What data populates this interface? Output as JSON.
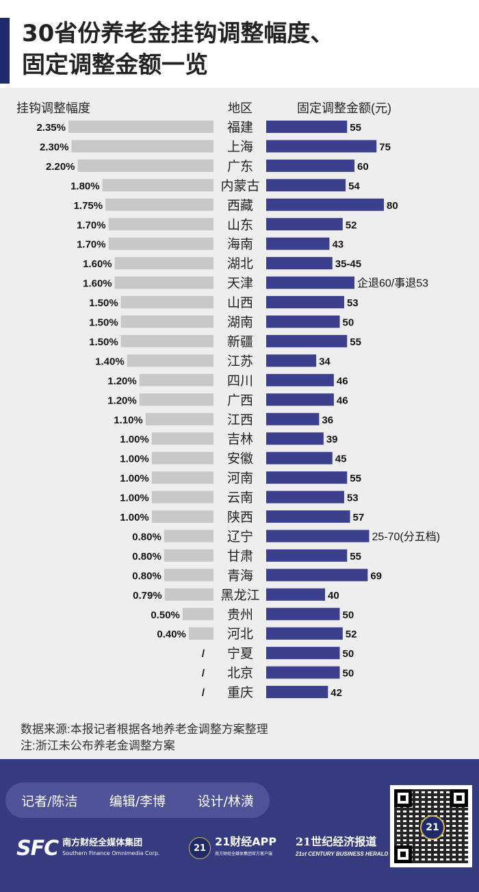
{
  "title": {
    "line1": "30省份养老金挂钩调整幅度、",
    "line2": "固定调整金额一览"
  },
  "colors": {
    "bar_left": "#c8c8c8",
    "bar_right": "#3c3f8e",
    "footer": "#353b7e"
  },
  "chart_data": {
    "type": "bar",
    "left_header": "挂钩调整幅度",
    "center_header": "地区",
    "right_header": "固定调整金额(元)",
    "rows": [
      {
        "region": "福建",
        "pct": 2.35,
        "pct_label": "2.35%",
        "amount": 55,
        "amount_label": "55"
      },
      {
        "region": "上海",
        "pct": 2.3,
        "pct_label": "2.30%",
        "amount": 75,
        "amount_label": "75"
      },
      {
        "region": "广东",
        "pct": 2.2,
        "pct_label": "2.20%",
        "amount": 60,
        "amount_label": "60"
      },
      {
        "region": "内蒙古",
        "pct": 1.8,
        "pct_label": "1.80%",
        "amount": 54,
        "amount_label": "54"
      },
      {
        "region": "西藏",
        "pct": 1.75,
        "pct_label": "1.75%",
        "amount": 80,
        "amount_label": "80"
      },
      {
        "region": "山东",
        "pct": 1.7,
        "pct_label": "1.70%",
        "amount": 52,
        "amount_label": "52"
      },
      {
        "region": "海南",
        "pct": 1.7,
        "pct_label": "1.70%",
        "amount": 43,
        "amount_label": "43"
      },
      {
        "region": "湖北",
        "pct": 1.6,
        "pct_label": "1.60%",
        "amount": 45,
        "amount_label": "35-45"
      },
      {
        "region": "天津",
        "pct": 1.6,
        "pct_label": "1.60%",
        "amount": 60,
        "amount_label": "企退60/事退53"
      },
      {
        "region": "山西",
        "pct": 1.5,
        "pct_label": "1.50%",
        "amount": 53,
        "amount_label": "53"
      },
      {
        "region": "湖南",
        "pct": 1.5,
        "pct_label": "1.50%",
        "amount": 50,
        "amount_label": "50"
      },
      {
        "region": "新疆",
        "pct": 1.5,
        "pct_label": "1.50%",
        "amount": 55,
        "amount_label": "55"
      },
      {
        "region": "江苏",
        "pct": 1.4,
        "pct_label": "1.40%",
        "amount": 34,
        "amount_label": "34"
      },
      {
        "region": "四川",
        "pct": 1.2,
        "pct_label": "1.20%",
        "amount": 46,
        "amount_label": "46"
      },
      {
        "region": "广西",
        "pct": 1.2,
        "pct_label": "1.20%",
        "amount": 46,
        "amount_label": "46"
      },
      {
        "region": "江西",
        "pct": 1.1,
        "pct_label": "1.10%",
        "amount": 36,
        "amount_label": "36"
      },
      {
        "region": "吉林",
        "pct": 1.0,
        "pct_label": "1.00%",
        "amount": 39,
        "amount_label": "39"
      },
      {
        "region": "安徽",
        "pct": 1.0,
        "pct_label": "1.00%",
        "amount": 45,
        "amount_label": "45"
      },
      {
        "region": "河南",
        "pct": 1.0,
        "pct_label": "1.00%",
        "amount": 55,
        "amount_label": "55"
      },
      {
        "region": "云南",
        "pct": 1.0,
        "pct_label": "1.00%",
        "amount": 53,
        "amount_label": "53"
      },
      {
        "region": "陕西",
        "pct": 1.0,
        "pct_label": "1.00%",
        "amount": 57,
        "amount_label": "57"
      },
      {
        "region": "辽宁",
        "pct": 0.8,
        "pct_label": "0.80%",
        "amount": 70,
        "amount_label": "25-70(分五档)"
      },
      {
        "region": "甘肃",
        "pct": 0.8,
        "pct_label": "0.80%",
        "amount": 55,
        "amount_label": "55"
      },
      {
        "region": "青海",
        "pct": 0.8,
        "pct_label": "0.80%",
        "amount": 69,
        "amount_label": "69"
      },
      {
        "region": "黑龙江",
        "pct": 0.79,
        "pct_label": "0.79%",
        "amount": 40,
        "amount_label": "40"
      },
      {
        "region": "贵州",
        "pct": 0.5,
        "pct_label": "0.50%",
        "amount": 50,
        "amount_label": "50"
      },
      {
        "region": "河北",
        "pct": 0.4,
        "pct_label": "0.40%",
        "amount": 52,
        "amount_label": "52"
      },
      {
        "region": "宁夏",
        "pct": null,
        "pct_label": "/",
        "amount": 50,
        "amount_label": "50"
      },
      {
        "region": "北京",
        "pct": null,
        "pct_label": "/",
        "amount": 50,
        "amount_label": "50"
      },
      {
        "region": "重庆",
        "pct": null,
        "pct_label": "/",
        "amount": 42,
        "amount_label": "42"
      }
    ]
  },
  "notes": {
    "source": "数据来源:本报记者根据各地养老金调整方案整理",
    "note": "注:浙江未公布养老金调整方案"
  },
  "footer": {
    "credits": [
      "记者/陈洁",
      "编辑/李博",
      "设计/林潢"
    ],
    "sfc": {
      "mark": "SFC",
      "cn": "南方财经全媒体集团",
      "en": "Southern Finance Omnimedia Corp."
    },
    "app": {
      "badge": "21",
      "name": "21财经APP",
      "sub": "南方财经全媒体集团官方客户端"
    },
    "herald": {
      "cn": "21世纪经济报道",
      "en": "21st CENTURY BUSINESS HERALD"
    },
    "qr_badge": "21"
  }
}
